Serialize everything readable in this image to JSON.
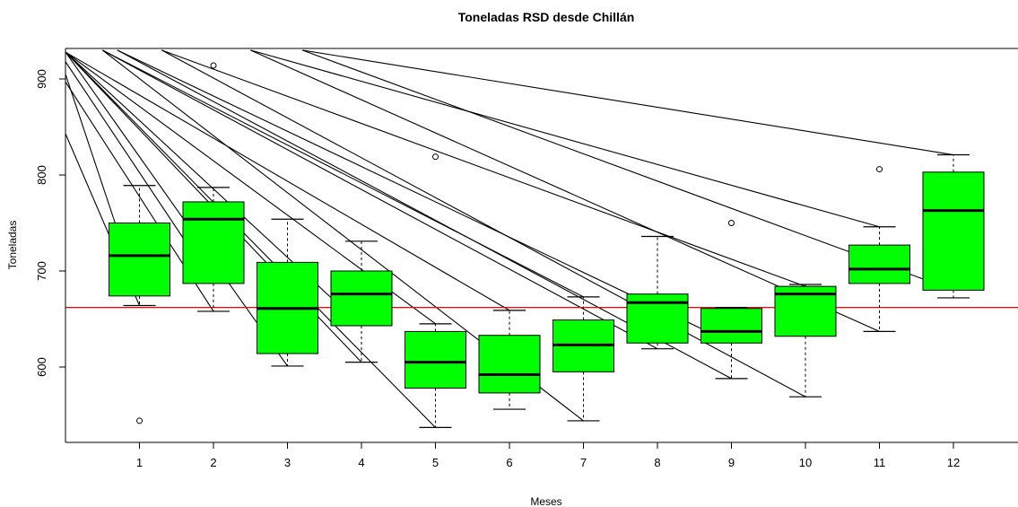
{
  "chart_data": {
    "type": "boxplot",
    "title": "Toneladas RSD desde Chillán",
    "xlabel": "Meses",
    "ylabel": "Toneladas",
    "ylim": [
      520,
      930
    ],
    "xlim": [
      0,
      13
    ],
    "y_ticks": [
      600,
      700,
      800,
      900
    ],
    "categories": [
      "1",
      "2",
      "3",
      "4",
      "5",
      "6",
      "7",
      "8",
      "9",
      "10",
      "11",
      "12"
    ],
    "boxes": [
      {
        "month": "1",
        "whisker_low": 664,
        "q1": 674,
        "median": 716,
        "q3": 750,
        "whisker_high": 789,
        "outliers": [
          544
        ]
      },
      {
        "month": "2",
        "whisker_low": 658,
        "q1": 687,
        "median": 754,
        "q3": 772,
        "whisker_high": 787,
        "outliers": [
          914
        ]
      },
      {
        "month": "3",
        "whisker_low": 601,
        "q1": 614,
        "median": 661,
        "q3": 709,
        "whisker_high": 754,
        "outliers": []
      },
      {
        "month": "4",
        "whisker_low": 605,
        "q1": 643,
        "median": 676,
        "q3": 700,
        "whisker_high": 731,
        "outliers": []
      },
      {
        "month": "5",
        "whisker_low": 537,
        "q1": 578,
        "median": 605,
        "q3": 637,
        "whisker_high": 645,
        "outliers": [
          819
        ]
      },
      {
        "month": "6",
        "whisker_low": 556,
        "q1": 573,
        "median": 592,
        "q3": 633,
        "whisker_high": 659,
        "outliers": []
      },
      {
        "month": "7",
        "whisker_low": 544,
        "q1": 595,
        "median": 623,
        "q3": 649,
        "whisker_high": 673,
        "outliers": []
      },
      {
        "month": "8",
        "whisker_low": 619,
        "q1": 625,
        "median": 667,
        "q3": 676,
        "whisker_high": 736,
        "outliers": []
      },
      {
        "month": "9",
        "whisker_low": 588,
        "q1": 625,
        "median": 637,
        "q3": 661,
        "whisker_high": 662,
        "outliers": [
          750
        ]
      },
      {
        "month": "10",
        "whisker_low": 569,
        "q1": 632,
        "median": 676,
        "q3": 684,
        "whisker_high": 686,
        "outliers": []
      },
      {
        "month": "11",
        "whisker_low": 637,
        "q1": 687,
        "median": 702,
        "q3": 727,
        "whisker_high": 746,
        "outliers": [
          806
        ]
      },
      {
        "month": "12",
        "whisker_low": 672,
        "q1": 680,
        "median": 763,
        "q3": 803,
        "whisker_high": 821,
        "outliers": []
      }
    ],
    "reference_line": {
      "y": 662,
      "color": "#ff0000"
    },
    "box_fill": "#00ff00",
    "grid": false,
    "rays": [
      {
        "x0": 0.0,
        "y0": 843,
        "x1": 1.0,
        "y1": 664
      },
      {
        "x0": 0.0,
        "y0": 897,
        "x1": 2.0,
        "y1": 658
      },
      {
        "x0": 0.0,
        "y0": 905,
        "x1": 1.0,
        "y1": 674
      },
      {
        "x0": 0.0,
        "y0": 918,
        "x1": 2.0,
        "y1": 687
      },
      {
        "x0": 0.0,
        "y0": 928,
        "x1": 3.0,
        "y1": 601
      },
      {
        "x0": 0.0,
        "y0": 928,
        "x1": 4.0,
        "y1": 605
      },
      {
        "x0": 0.0,
        "y0": 928,
        "x1": 5.0,
        "y1": 537
      },
      {
        "x0": 0.0,
        "y0": 928,
        "x1": 4.0,
        "y1": 643
      },
      {
        "x0": 0.0,
        "y0": 928,
        "x1": 5.0,
        "y1": 645
      },
      {
        "x0": 0.0,
        "y0": 928,
        "x1": 6.0,
        "y1": 659
      },
      {
        "x0": 0.5,
        "y0": 930,
        "x1": 7.0,
        "y1": 544
      },
      {
        "x0": 0.5,
        "y0": 930,
        "x1": 7.0,
        "y1": 673
      },
      {
        "x0": 0.5,
        "y0": 930,
        "x1": 8.0,
        "y1": 619
      },
      {
        "x0": 0.7,
        "y0": 930,
        "x1": 9.0,
        "y1": 625
      },
      {
        "x0": 0.7,
        "y0": 930,
        "x1": 9.0,
        "y1": 588
      },
      {
        "x0": 1.3,
        "y0": 930,
        "x1": 10.0,
        "y1": 569
      },
      {
        "x0": 1.3,
        "y0": 930,
        "x1": 10.0,
        "y1": 684
      },
      {
        "x0": 2.5,
        "y0": 930,
        "x1": 11.0,
        "y1": 637
      },
      {
        "x0": 2.5,
        "y0": 930,
        "x1": 11.0,
        "y1": 746
      },
      {
        "x0": 3.2,
        "y0": 930,
        "x1": 12.0,
        "y1": 680
      },
      {
        "x0": 3.2,
        "y0": 930,
        "x1": 12.0,
        "y1": 821
      }
    ]
  }
}
